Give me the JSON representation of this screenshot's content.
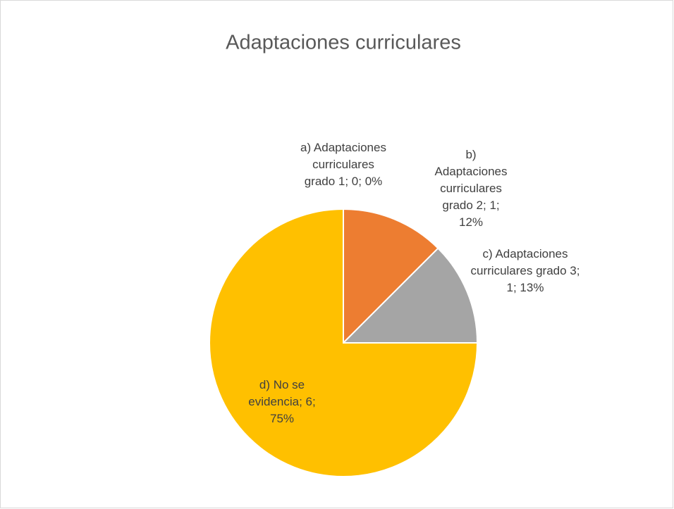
{
  "chart_data": {
    "type": "pie",
    "title": "Adaptaciones curriculares",
    "categories": [
      "a) Adaptaciones curriculares grado 1",
      "b) Adaptaciones curriculares grado 2",
      "c) Adaptaciones curriculares grado 3",
      "d) No se evidencia"
    ],
    "values": [
      0,
      1,
      1,
      6
    ],
    "value_labels": [
      "a) Adaptaciones curriculares grado 1; 0; 0%",
      "b) Adaptaciones curriculares grado 2; 1; 12%",
      "c) Adaptaciones curriculares grado 3; 1; 13%",
      "d) No se evidencia; 6; 75%"
    ],
    "colors": [
      "#4472c4",
      "#ed7d31",
      "#a5a5a5",
      "#ffc000"
    ]
  }
}
